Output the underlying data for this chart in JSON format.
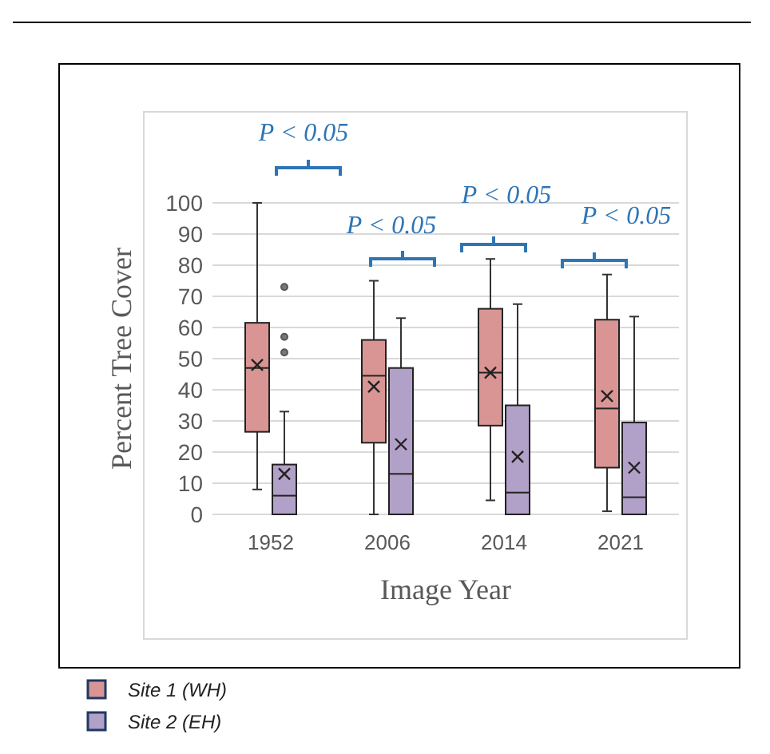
{
  "chart_data": {
    "type": "box",
    "xlabel": "Image Year",
    "ylabel": "Percent Tree Cover",
    "categories": [
      "1952",
      "2006",
      "2014",
      "2021"
    ],
    "series": [
      {
        "name": "Site 1 (WH)",
        "color": "#d99594",
        "boxes": [
          {
            "low": 8,
            "q1": 26.5,
            "median": 47,
            "q3": 61.5,
            "high": 100,
            "mean": 48
          },
          {
            "low": 0,
            "q1": 23,
            "median": 44.5,
            "q3": 56,
            "high": 75,
            "mean": 41
          },
          {
            "low": 4.5,
            "q1": 28.5,
            "median": 45.5,
            "q3": 66,
            "high": 82,
            "mean": 45.5
          },
          {
            "low": 1,
            "q1": 15,
            "median": 34,
            "q3": 62.5,
            "high": 77,
            "mean": 38
          }
        ]
      },
      {
        "name": "Site 2 (EH)",
        "color": "#b1a0c7",
        "boxes": [
          {
            "low": 0,
            "q1": 0,
            "median": 6,
            "q3": 16,
            "high": 33,
            "mean": 13,
            "outliers": [
              73,
              57,
              52
            ]
          },
          {
            "low": 0,
            "q1": 0,
            "median": 13,
            "q3": 47,
            "high": 63,
            "mean": 22.5
          },
          {
            "low": 0,
            "q1": 0,
            "median": 7,
            "q3": 35,
            "high": 67.5,
            "mean": 18.5
          },
          {
            "low": 0,
            "q1": 0,
            "median": 5.5,
            "q3": 29.5,
            "high": 63.5,
            "mean": 15
          }
        ]
      }
    ],
    "ylim": [
      0,
      100
    ],
    "yticks": [
      0,
      10,
      20,
      30,
      40,
      50,
      60,
      70,
      80,
      90,
      100
    ],
    "grid": "y",
    "legend": "bottom left",
    "annotations": [
      "P < 0.05",
      "P < 0.05",
      "P < 0.05",
      "P < 0.05"
    ]
  }
}
